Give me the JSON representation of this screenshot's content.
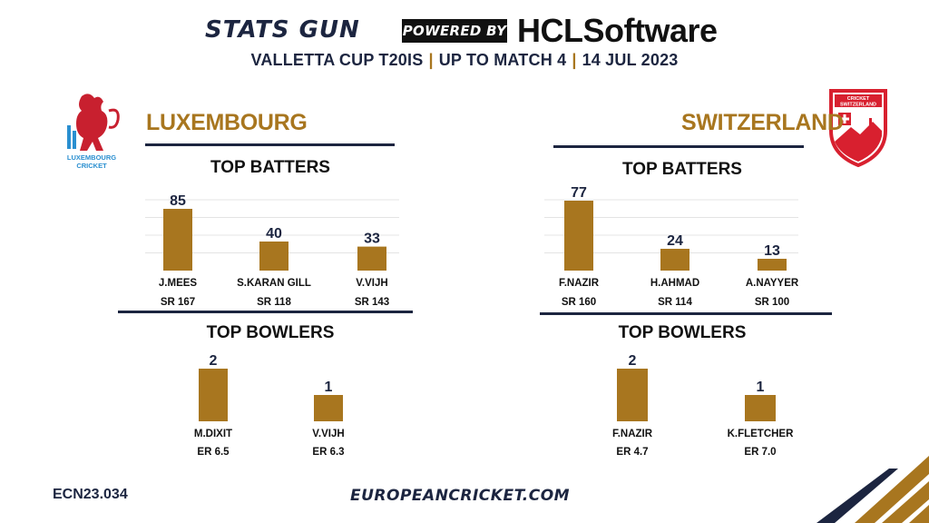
{
  "header": {
    "brand": "STATS GUN",
    "powered_by": "POWERED BY",
    "sponsor": "HCLSoftware",
    "subtitle_parts": [
      "VALLETTA CUP T20IS",
      "UP TO MATCH 4",
      "14 JUL 2023"
    ],
    "separator": "|"
  },
  "logos": {
    "luxembourg": {
      "name": "lion-crest-icon",
      "text_line1": "LUXEMBOURG",
      "text_line2": "CRICKET"
    },
    "switzerland": {
      "name": "swiss-shield-icon",
      "text_line1": "CRICKET",
      "text_line2": "SWITZERLAND"
    }
  },
  "teams": {
    "left": {
      "name": "LUXEMBOURG",
      "batters_title": "TOP BATTERS",
      "bowlers_title": "TOP BOWLERS"
    },
    "right": {
      "name": "SWITZERLAND",
      "batters_title": "TOP BATTERS",
      "bowlers_title": "TOP BOWLERS"
    }
  },
  "colors": {
    "accent": "#a8761f",
    "navy": "#1c2540",
    "bar": "#a8761f"
  },
  "chart_data": [
    {
      "type": "bar",
      "title": "TOP BATTERS",
      "team": "LUXEMBOURG",
      "categories": [
        "J.MEES",
        "S.KARAN GILL",
        "V.VIJH"
      ],
      "values": [
        85,
        40,
        33
      ],
      "sublabels": [
        "SR 167",
        "SR 118",
        "SR 143"
      ],
      "ylim": [
        0,
        100
      ]
    },
    {
      "type": "bar",
      "title": "TOP BATTERS",
      "team": "SWITZERLAND",
      "categories": [
        "F.NAZIR",
        "H.AHMAD",
        "A.NAYYER"
      ],
      "values": [
        77,
        24,
        13
      ],
      "sublabels": [
        "SR 160",
        "SR 114",
        "SR 100"
      ],
      "ylim": [
        0,
        100
      ]
    },
    {
      "type": "bar",
      "title": "TOP BOWLERS",
      "team": "LUXEMBOURG",
      "categories": [
        "M.DIXIT",
        "V.VIJH"
      ],
      "values": [
        2,
        1
      ],
      "sublabels": [
        "ER 6.5",
        "ER 6.3"
      ],
      "ylim": [
        0,
        2
      ]
    },
    {
      "type": "bar",
      "title": "TOP BOWLERS",
      "team": "SWITZERLAND",
      "categories": [
        "F.NAZIR",
        "K.FLETCHER"
      ],
      "values": [
        2,
        1
      ],
      "sublabels": [
        "ER 4.7",
        "ER 7.0"
      ],
      "ylim": [
        0,
        2
      ]
    }
  ],
  "footer": {
    "code": "ECN23.034",
    "url": "EUROPEANCRICKET.COM"
  }
}
